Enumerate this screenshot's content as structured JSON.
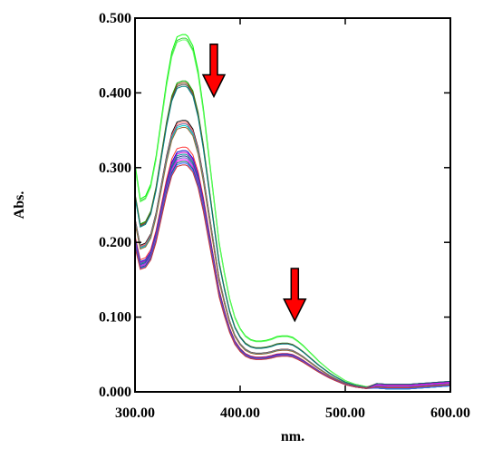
{
  "chart_data": {
    "type": "line",
    "title": "",
    "xlabel": "nm.",
    "ylabel": "Abs.",
    "xlim": [
      300,
      600
    ],
    "ylim": [
      0,
      0.5
    ],
    "x_ticks": [
      "300.00",
      "400.00",
      "500.00",
      "600.00"
    ],
    "y_ticks": [
      "0.000",
      "0.100",
      "0.200",
      "0.300",
      "0.400",
      "0.500"
    ],
    "grid": false,
    "legend": "none",
    "base_spectrum": {
      "x": [
        300,
        305,
        310,
        315,
        320,
        325,
        330,
        335,
        340,
        345,
        348,
        350,
        355,
        360,
        365,
        370,
        375,
        380,
        385,
        390,
        395,
        400,
        405,
        410,
        415,
        420,
        425,
        430,
        435,
        440,
        445,
        450,
        455,
        460,
        465,
        470,
        475,
        480,
        485,
        490,
        500,
        510,
        520,
        530,
        540,
        550,
        560,
        570,
        580,
        590,
        600
      ],
      "y": [
        0.305,
        0.258,
        0.262,
        0.278,
        0.315,
        0.365,
        0.415,
        0.455,
        0.475,
        0.478,
        0.478,
        0.476,
        0.463,
        0.43,
        0.38,
        0.32,
        0.26,
        0.2,
        0.16,
        0.125,
        0.1,
        0.085,
        0.075,
        0.07,
        0.068,
        0.068,
        0.069,
        0.071,
        0.074,
        0.075,
        0.075,
        0.073,
        0.068,
        0.062,
        0.055,
        0.048,
        0.041,
        0.035,
        0.029,
        0.024,
        0.015,
        0.01,
        0.007,
        0.005,
        0.004,
        0.004,
        0.004,
        0.005,
        0.006,
        0.007,
        0.008
      ]
    },
    "series_scale": [
      1.0,
      0.99,
      0.985,
      0.87,
      0.865,
      0.86,
      0.855,
      0.76,
      0.755,
      0.75,
      0.745,
      0.74,
      0.685,
      0.675,
      0.67,
      0.665,
      0.66,
      0.655,
      0.65,
      0.645,
      0.64,
      0.635
    ],
    "series_colors": [
      "#00ff00",
      "#33cc33",
      "#66ff66",
      "#00aa00",
      "#8b4513",
      "#4d4d4d",
      "#008080",
      "#000000",
      "#ff6666",
      "#666699",
      "#00cccc",
      "#996633",
      "#ff3333",
      "#0000cc",
      "#cc00cc",
      "#009999",
      "#333399",
      "#6666cc",
      "#ff00ff",
      "#006666",
      "#3366ff",
      "#cc3333"
    ],
    "annotations": [
      {
        "type": "arrow-down",
        "x": 375,
        "y_top": 0.465,
        "y_bottom": 0.395,
        "color": "#ff0000"
      },
      {
        "type": "arrow-down",
        "x": 452,
        "y_top": 0.165,
        "y_bottom": 0.095,
        "color": "#ff0000"
      }
    ]
  }
}
